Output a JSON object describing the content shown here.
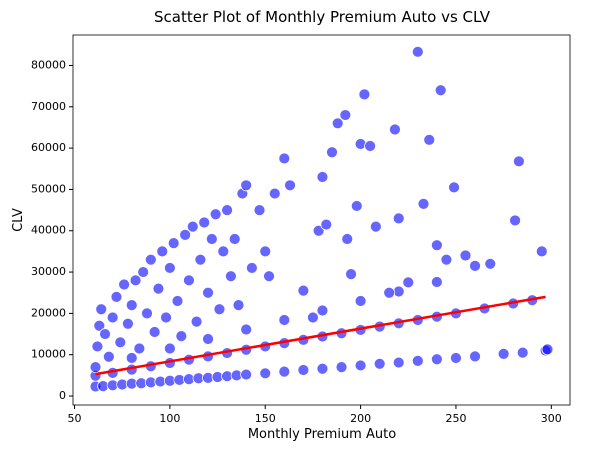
{
  "chart_data": {
    "type": "scatter",
    "title": "Scatter Plot of Monthly Premium Auto vs CLV",
    "x_label": "Monthly Premium Auto",
    "y_label": "CLV",
    "xlim": [
      49.2,
      309.8
    ],
    "ylim": [
      -2170,
      87370
    ],
    "xticks": [
      50,
      100,
      150,
      200,
      250,
      300
    ],
    "yticks": [
      0,
      10000,
      20000,
      30000,
      40000,
      50000,
      60000,
      70000,
      80000
    ],
    "grid": false,
    "points": {
      "color": "#0000ff",
      "x": [
        61,
        65,
        70,
        75,
        80,
        85,
        90,
        95,
        100,
        105,
        110,
        115,
        120,
        125,
        130,
        135,
        140,
        150,
        160,
        170,
        180,
        190,
        200,
        210,
        220,
        230,
        240,
        250,
        260,
        275,
        285,
        297,
        61,
        70,
        80,
        90,
        100,
        110,
        120,
        130,
        140,
        150,
        160,
        170,
        180,
        190,
        200,
        210,
        220,
        230,
        240,
        250,
        265,
        280,
        290,
        61,
        80,
        100,
        120,
        140,
        160,
        180,
        200,
        220,
        240,
        260,
        62,
        63,
        64,
        66,
        68,
        70,
        72,
        74,
        76,
        78,
        80,
        82,
        84,
        86,
        88,
        90,
        92,
        94,
        96,
        98,
        100,
        102,
        104,
        106,
        108,
        110,
        112,
        114,
        116,
        118,
        120,
        122,
        124,
        126,
        128,
        130,
        132,
        134,
        136,
        138,
        140,
        143,
        147,
        150,
        152,
        155,
        160,
        163,
        170,
        175,
        178,
        180,
        182,
        185,
        188,
        192,
        193,
        195,
        198,
        200,
        202,
        205,
        208,
        215,
        218,
        220,
        225,
        230,
        233,
        236,
        240,
        242,
        245,
        249,
        255,
        268,
        281,
        283,
        295,
        298
      ],
      "values": [
        2300,
        2400,
        2600,
        2800,
        3000,
        3100,
        3300,
        3500,
        3700,
        3900,
        4100,
        4300,
        4400,
        4600,
        4800,
        5000,
        5200,
        5500,
        5900,
        6300,
        6600,
        7000,
        7400,
        7800,
        8100,
        8500,
        8900,
        9200,
        9600,
        10200,
        10500,
        11000,
        4900,
        5600,
        6400,
        7200,
        8000,
        8800,
        9600,
        10400,
        11200,
        12000,
        12800,
        13600,
        14400,
        15200,
        16000,
        16800,
        17600,
        18400,
        19200,
        20000,
        21200,
        22400,
        23200,
        7000,
        9200,
        11500,
        13800,
        16100,
        18400,
        20700,
        23000,
        25300,
        27600,
        31500,
        12000,
        17000,
        21000,
        15000,
        9500,
        19000,
        24000,
        13000,
        27000,
        17500,
        22000,
        28000,
        11500,
        30000,
        20000,
        33000,
        15500,
        26000,
        35000,
        19000,
        31000,
        37000,
        23000,
        14500,
        39000,
        28000,
        41000,
        18000,
        33000,
        42000,
        25000,
        38000,
        44000,
        21000,
        35000,
        45000,
        29000,
        38000,
        22000,
        49000,
        51000,
        31000,
        45000,
        35000,
        29000,
        49000,
        57500,
        51000,
        25500,
        19000,
        40000,
        53000,
        41500,
        59000,
        66000,
        68000,
        38000,
        29500,
        46000,
        61000,
        73000,
        60500,
        41000,
        25000,
        64500,
        43000,
        27500,
        83300,
        46500,
        62000,
        36500,
        74000,
        33000,
        50500,
        34000,
        32000,
        42500,
        56800,
        35000,
        11300
      ]
    },
    "fit_line": {
      "color": "#ff0000",
      "x": [
        61,
        297
      ],
      "values": [
        5300,
        24000
      ]
    }
  }
}
